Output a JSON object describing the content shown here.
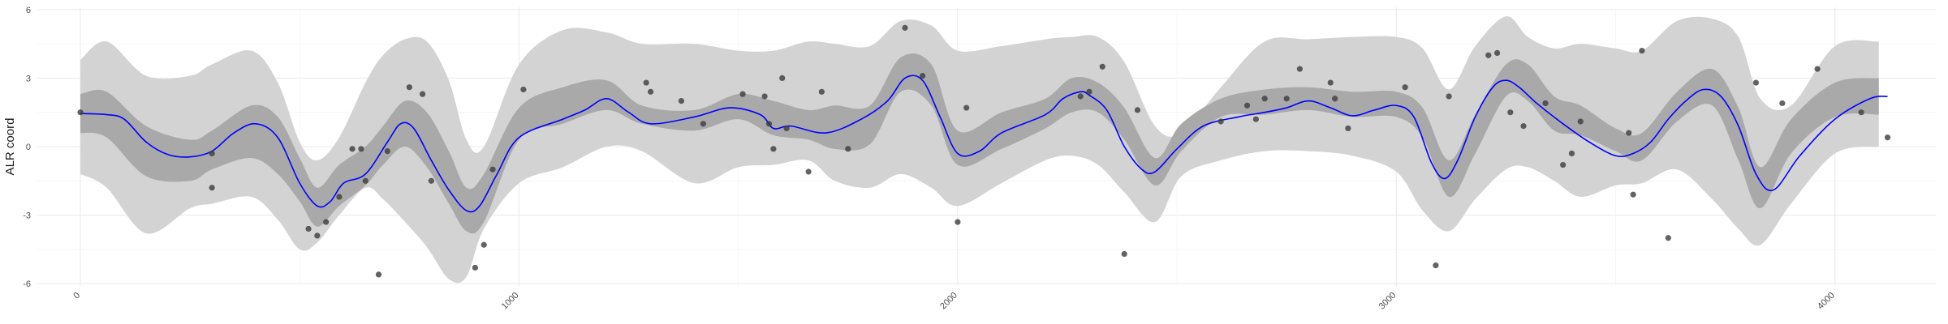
{
  "chart_data": {
    "type": "line",
    "title": "",
    "xlabel": "",
    "ylabel": "ALR coord",
    "xlim": [
      -100,
      4230
    ],
    "ylim": [
      -6.1,
      6.1
    ],
    "x_ticks": [
      0,
      1000,
      2000,
      3000,
      4000
    ],
    "y_ticks": [
      -6,
      -3,
      0,
      3,
      6
    ],
    "grid": true,
    "legend": "none",
    "colors": {
      "outer_band": "#d3d3d3",
      "inner_band": "#a9a9a9",
      "fit_line": "#0000ff",
      "points": "#3c3c3c"
    },
    "series": [
      {
        "type": "area-band",
        "x": [
          0,
          60,
          150,
          250,
          300,
          390,
          450,
          500,
          540,
          590,
          650,
          690,
          740,
          790,
          840,
          880,
          920,
          1000,
          1100,
          1200,
          1280,
          1400,
          1500,
          1580,
          1660,
          1720,
          1800,
          1870,
          1940,
          2000,
          2100,
          2200,
          2260,
          2320,
          2380,
          2450,
          2510,
          2600,
          2700,
          2800,
          2900,
          3000,
          3060,
          3120,
          3180,
          3250,
          3300,
          3360,
          3420,
          3500,
          3560,
          3640,
          3720,
          3780,
          3830,
          3900,
          4000,
          4100
        ],
        "lower": [
          -1.2,
          -1.8,
          -3.8,
          -2.7,
          -2.5,
          -2.2,
          -3.2,
          -4.5,
          -4.2,
          -3.0,
          -1.8,
          -2.3,
          -3.3,
          -4.4,
          -5.8,
          -5.7,
          -3.6,
          -1.6,
          -0.9,
          0.0,
          -0.2,
          -1.6,
          -0.9,
          -0.8,
          -0.6,
          -1.5,
          -1.8,
          -1.2,
          -1.8,
          -2.6,
          -1.6,
          -0.6,
          -0.4,
          -0.8,
          -2.0,
          -3.3,
          -1.3,
          -0.6,
          -0.2,
          -0.2,
          -0.4,
          -1.1,
          -2.8,
          -3.7,
          -2.3,
          -1.0,
          -0.9,
          -1.5,
          -2.2,
          -1.7,
          -1.6,
          -1.0,
          -2.3,
          -3.6,
          -4.3,
          -2.5,
          -0.3,
          0.0
        ],
        "upper": [
          3.8,
          4.6,
          3.1,
          3.1,
          3.6,
          4.2,
          2.8,
          0.2,
          -0.6,
          0.4,
          2.8,
          4.0,
          4.7,
          4.6,
          2.9,
          0.3,
          0.0,
          3.6,
          5.1,
          5.0,
          4.5,
          4.5,
          4.2,
          4.2,
          4.6,
          4.5,
          4.4,
          5.5,
          5.3,
          4.2,
          4.4,
          4.7,
          4.8,
          4.8,
          3.7,
          0.9,
          0.6,
          2.6,
          4.6,
          4.7,
          4.8,
          4.8,
          4.3,
          2.5,
          4.4,
          5.7,
          4.8,
          4.3,
          4.5,
          4.3,
          4.2,
          5.5,
          5.6,
          4.8,
          2.1,
          1.8,
          4.4,
          4.6
        ]
      },
      {
        "type": "area-band",
        "x": [
          0,
          60,
          150,
          250,
          300,
          390,
          450,
          500,
          540,
          590,
          650,
          690,
          740,
          790,
          840,
          880,
          920,
          1000,
          1100,
          1200,
          1280,
          1400,
          1500,
          1580,
          1660,
          1720,
          1800,
          1870,
          1940,
          2000,
          2100,
          2200,
          2260,
          2320,
          2380,
          2450,
          2510,
          2600,
          2700,
          2800,
          2900,
          3000,
          3060,
          3120,
          3180,
          3250,
          3300,
          3360,
          3420,
          3500,
          3560,
          3640,
          3720,
          3780,
          3830,
          3900,
          4000,
          4100
        ],
        "lower": [
          0.6,
          0.4,
          -1.3,
          -1.5,
          -1.0,
          -0.5,
          -1.2,
          -2.4,
          -3.5,
          -2.6,
          -1.7,
          -0.8,
          0.0,
          -0.9,
          -2.5,
          -3.7,
          -3.3,
          0.3,
          1.0,
          1.6,
          1.0,
          0.7,
          1.2,
          0.5,
          0.3,
          -0.1,
          0.1,
          2.4,
          1.8,
          -0.8,
          -0.1,
          0.8,
          1.5,
          1.5,
          0.3,
          -1.7,
          -0.2,
          1.3,
          1.4,
          1.6,
          1.3,
          1.3,
          0.4,
          -2.2,
          -0.3,
          2.2,
          2.0,
          0.7,
          0.5,
          -0.2,
          -0.6,
          1.1,
          1.8,
          -0.6,
          -2.7,
          -0.3,
          1.3,
          1.4
        ],
        "upper": [
          2.3,
          2.4,
          0.9,
          0.3,
          0.7,
          1.8,
          1.3,
          -0.5,
          -1.8,
          -0.8,
          0.0,
          0.9,
          2.0,
          1.5,
          -0.2,
          -1.8,
          -1.2,
          1.7,
          2.6,
          2.9,
          1.8,
          1.6,
          2.3,
          2.0,
          1.6,
          1.8,
          1.8,
          3.9,
          3.6,
          0.7,
          1.5,
          2.1,
          3.0,
          2.8,
          1.7,
          -0.5,
          1.0,
          2.1,
          2.5,
          2.6,
          2.4,
          2.4,
          1.7,
          -0.6,
          1.4,
          3.6,
          3.6,
          2.2,
          1.8,
          0.8,
          0.6,
          2.4,
          3.4,
          1.7,
          -0.9,
          1.2,
          2.8,
          3.0
        ]
      },
      {
        "type": "line",
        "x": [
          0,
          60,
          100,
          150,
          200,
          250,
          300,
          350,
          400,
          450,
          500,
          540,
          570,
          600,
          650,
          700,
          730,
          760,
          800,
          840,
          880,
          910,
          950,
          1000,
          1100,
          1150,
          1200,
          1250,
          1300,
          1400,
          1480,
          1550,
          1580,
          1620,
          1700,
          1780,
          1840,
          1880,
          1920,
          1960,
          2000,
          2050,
          2100,
          2200,
          2240,
          2280,
          2300,
          2340,
          2380,
          2420,
          2450,
          2500,
          2560,
          2640,
          2700,
          2750,
          2800,
          2850,
          2900,
          2950,
          3000,
          3040,
          3080,
          3110,
          3140,
          3180,
          3220,
          3250,
          3280,
          3320,
          3380,
          3440,
          3500,
          3540,
          3580,
          3620,
          3660,
          3700,
          3740,
          3780,
          3820,
          3860,
          3920,
          4000,
          4080,
          4120
        ],
        "y": [
          1.45,
          1.4,
          1.2,
          0.2,
          -0.35,
          -0.45,
          -0.2,
          0.6,
          1.0,
          0.4,
          -1.6,
          -2.6,
          -2.4,
          -1.6,
          -1.2,
          0.2,
          1.0,
          0.8,
          -0.6,
          -1.9,
          -2.8,
          -2.6,
          -1.2,
          0.4,
          1.2,
          1.6,
          2.1,
          1.5,
          1.0,
          1.3,
          1.7,
          1.4,
          0.8,
          0.9,
          0.6,
          1.2,
          2.0,
          3.0,
          2.9,
          1.3,
          -0.3,
          -0.2,
          0.6,
          1.4,
          2.1,
          2.4,
          2.25,
          1.6,
          0.0,
          -1.0,
          -1.1,
          -0.1,
          0.9,
          1.3,
          1.5,
          1.7,
          2.0,
          1.7,
          1.35,
          1.6,
          1.8,
          1.3,
          -0.7,
          -1.4,
          -0.6,
          1.3,
          2.6,
          2.9,
          2.6,
          1.9,
          1.0,
          0.2,
          -0.4,
          -0.3,
          0.2,
          1.2,
          2.0,
          2.5,
          2.2,
          0.9,
          -1.2,
          -1.9,
          -0.4,
          1.2,
          2.1,
          2.2
        ]
      },
      {
        "type": "scatter",
        "x": [
          0,
          300,
          300,
          520,
          540,
          560,
          590,
          620,
          640,
          650,
          680,
          700,
          750,
          780,
          800,
          900,
          920,
          940,
          1010,
          1290,
          1300,
          1370,
          1420,
          1510,
          1560,
          1570,
          1580,
          1600,
          1610,
          1660,
          1690,
          1750,
          1880,
          1920,
          2000,
          2020,
          2280,
          2300,
          2330,
          2380,
          2410,
          2600,
          2660,
          2680,
          2700,
          2750,
          2780,
          2850,
          2860,
          2890,
          3020,
          3090,
          3120,
          3210,
          3230,
          3260,
          3290,
          3340,
          3380,
          3400,
          3420,
          3530,
          3540,
          3560,
          3620,
          3820,
          3880,
          3960,
          4060,
          4120
        ],
        "y": [
          1.5,
          -0.3,
          -1.8,
          -3.6,
          -3.9,
          -3.3,
          -2.2,
          -0.1,
          -0.1,
          -1.5,
          -5.6,
          -0.2,
          2.6,
          2.3,
          -1.5,
          -5.3,
          -4.3,
          -1.0,
          2.5,
          2.8,
          2.4,
          2.0,
          1.0,
          2.3,
          2.2,
          1.0,
          -0.1,
          3.0,
          0.8,
          -1.1,
          2.4,
          -0.1,
          5.2,
          3.1,
          -3.3,
          1.7,
          2.2,
          2.4,
          3.5,
          -4.7,
          1.6,
          1.1,
          1.8,
          1.2,
          2.1,
          2.1,
          3.4,
          2.8,
          2.1,
          0.8,
          2.6,
          -5.2,
          2.2,
          4.0,
          4.1,
          1.5,
          0.9,
          1.9,
          -0.8,
          -0.3,
          1.1,
          0.6,
          -2.1,
          4.2,
          -4.0,
          2.8,
          1.9,
          3.4,
          1.5,
          0.4
        ]
      }
    ]
  }
}
